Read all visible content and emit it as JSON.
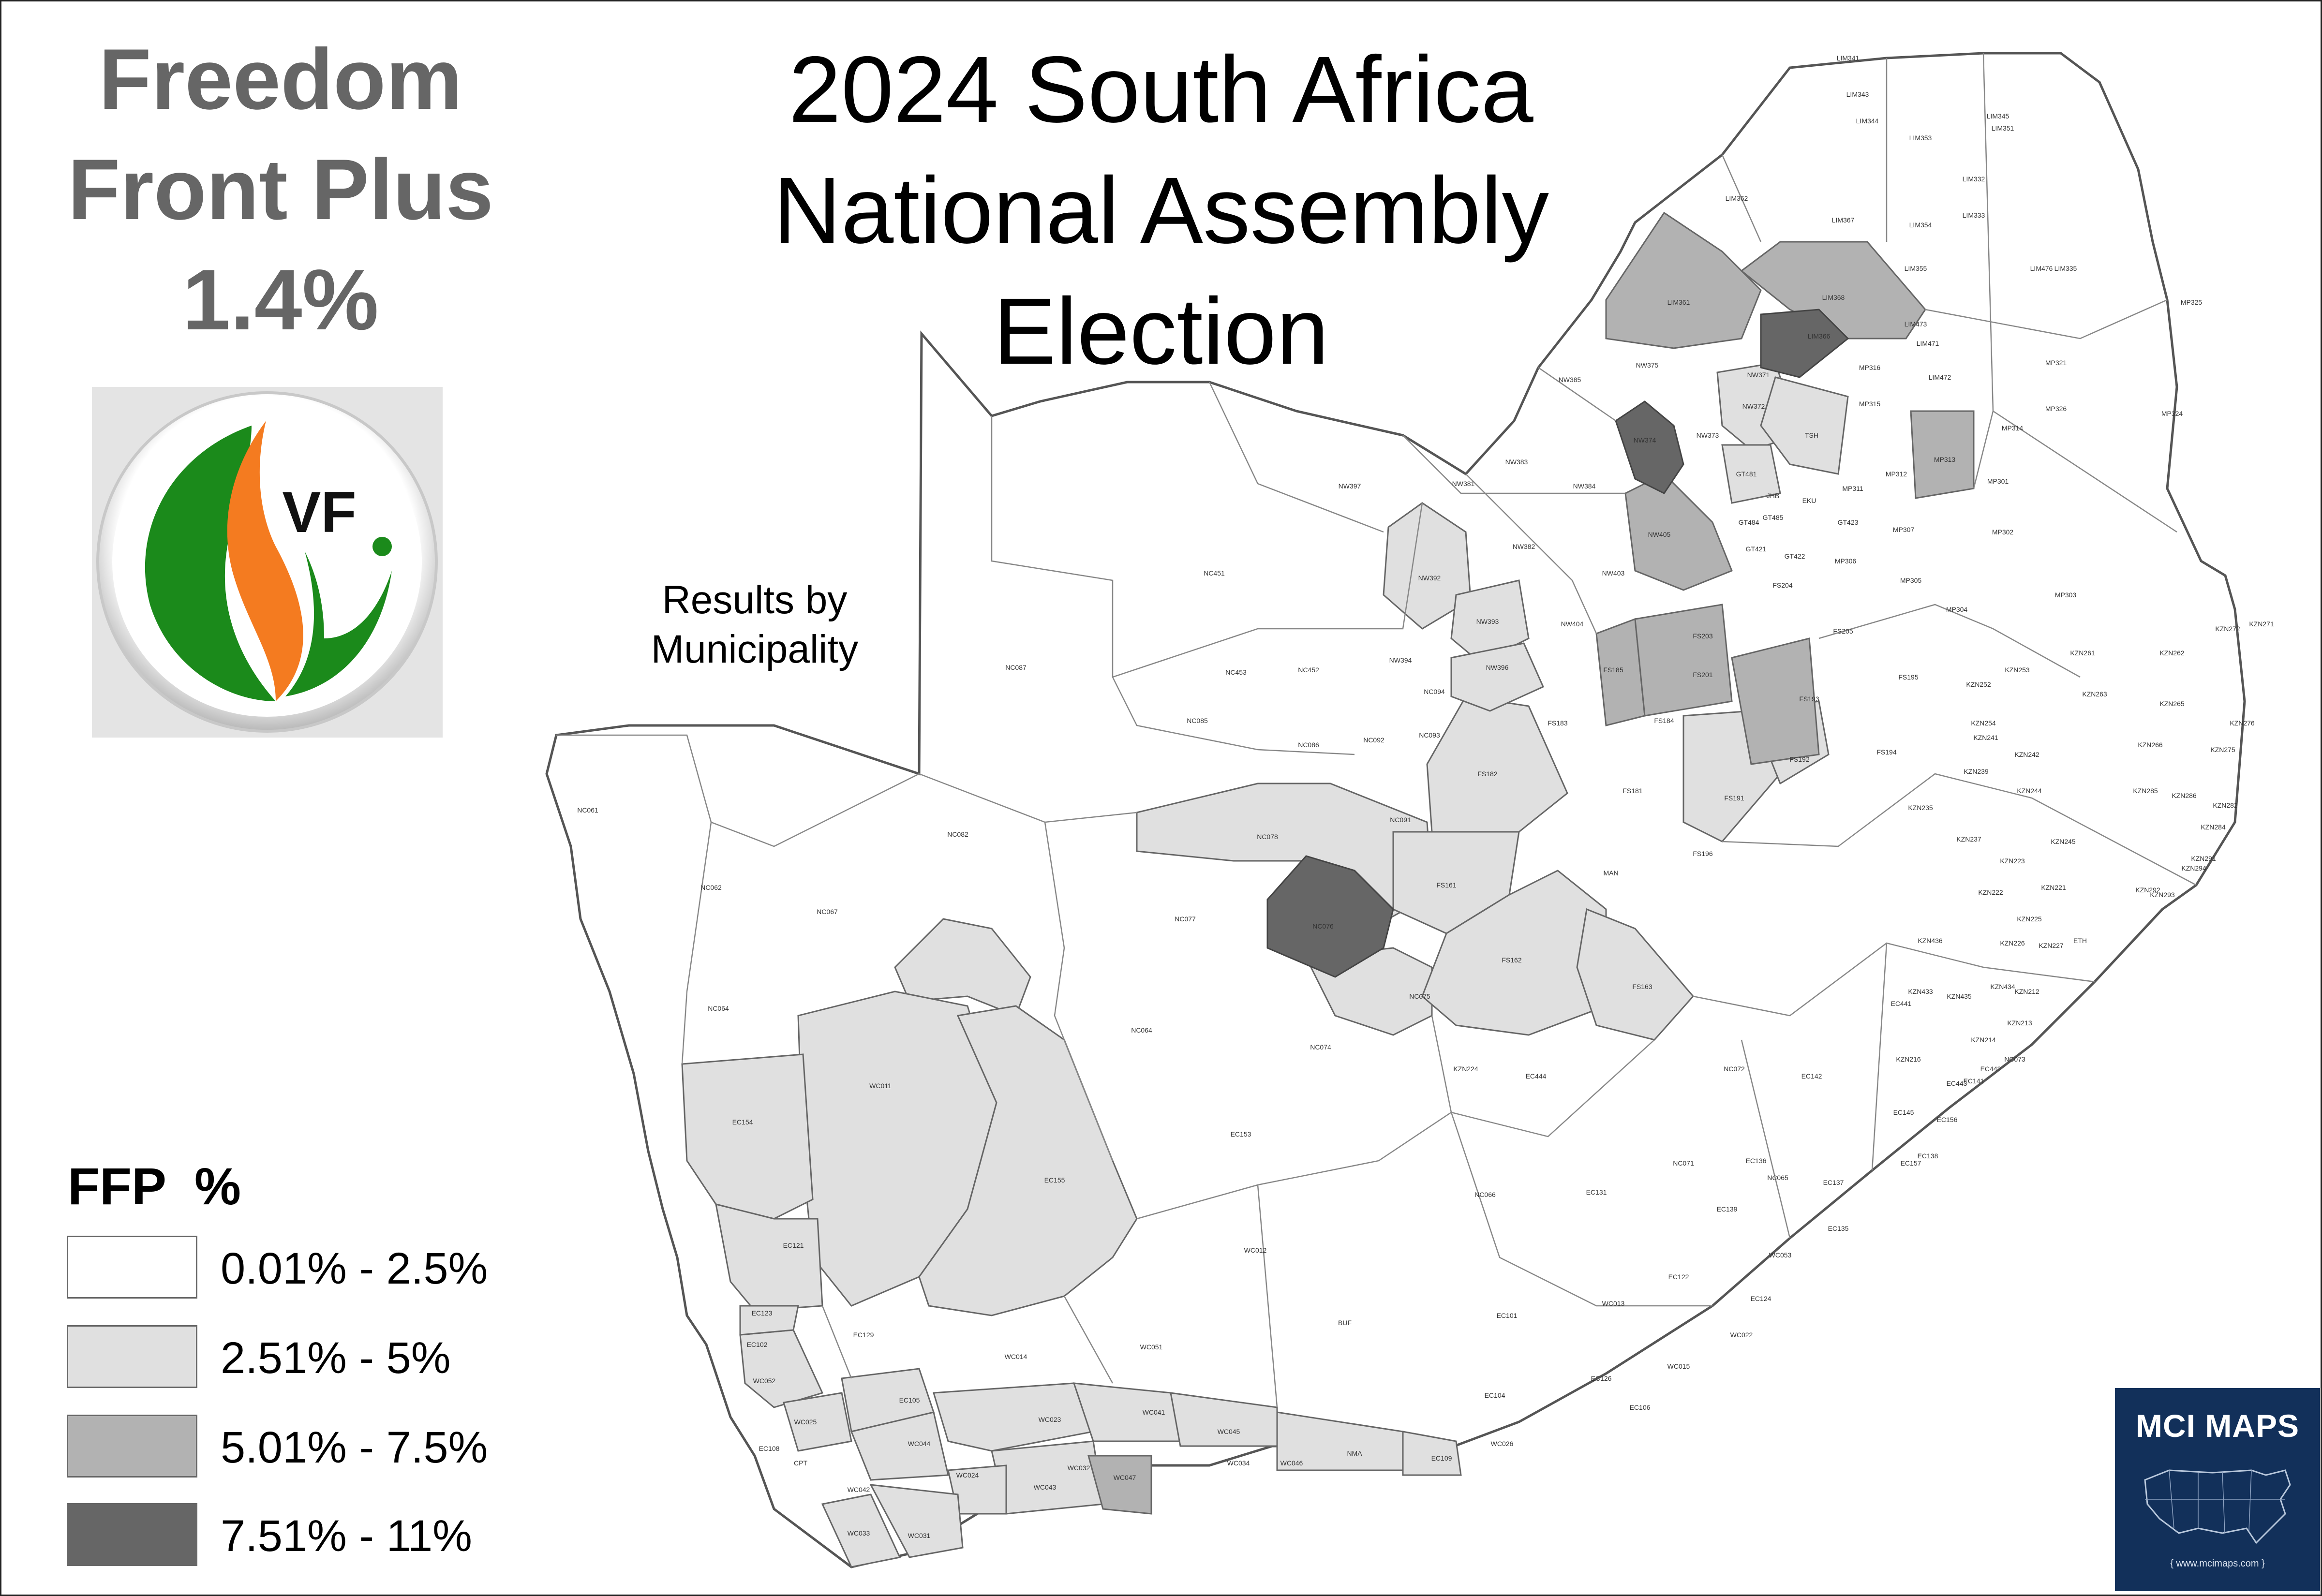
{
  "party": {
    "name_line1": "Freedom",
    "name_line2": "Front Plus",
    "national_share": "1.4%",
    "logo_letters": "VF",
    "colors": {
      "green": "#1b8a1b",
      "orange": "#f47b20",
      "gray": "#666666"
    }
  },
  "title": {
    "line1": "2024 South Africa",
    "line2": "National Assembly",
    "line3": "Election"
  },
  "subtitle": "Results by\nMunicipality",
  "legend": {
    "title": "FFP  %",
    "classes": [
      {
        "label": "0.01% - 2.5%",
        "color": "#ffffff"
      },
      {
        "label": "2.51% - 5%",
        "color": "#e0e0e0"
      },
      {
        "label": "5.01% - 7.5%",
        "color": "#b2b2b2"
      },
      {
        "label": "7.51% - 11%",
        "color": "#666666"
      }
    ]
  },
  "municipality_labels": [
    "LIM341",
    "LIM343",
    "LIM345",
    "LIM344",
    "LIM351",
    "LIM353",
    "LIM332",
    "LIM362",
    "LIM367",
    "LIM354",
    "LIM333",
    "LIM355",
    "LIM335",
    "LIM476",
    "LIM361",
    "LIM366",
    "LIM473",
    "MP325",
    "LIM368",
    "LIM471",
    "LIM472",
    "MP321",
    "NW375",
    "NW371",
    "MP316",
    "MP315",
    "MP326",
    "MP324",
    "NW385",
    "NW373",
    "NW372",
    "TSH",
    "MP314",
    "NW374",
    "GT481",
    "MP313",
    "MP312",
    "NW383",
    "NW384",
    "NW397",
    "NW381",
    "JHB",
    "EKU",
    "MP311",
    "MP301",
    "NW405",
    "GT484",
    "GT485",
    "GT423",
    "MP307",
    "MP302",
    "NW382",
    "GT421",
    "GT422",
    "MP306",
    "NW392",
    "NC451",
    "NW403",
    "FS204",
    "MP305",
    "MP304",
    "MP303",
    "NW393",
    "NW404",
    "FS203",
    "FS205",
    "KZN271",
    "KZN272",
    "NC087",
    "NC453",
    "NW394",
    "NW396",
    "FS185",
    "FS201",
    "KZN261",
    "KZN262",
    "NC452",
    "FS195",
    "KZN252",
    "KZN253",
    "NC094",
    "FS193",
    "KZN263",
    "NC085",
    "NC093",
    "FS183",
    "FS184",
    "KZN254",
    "KZN265",
    "KZN276",
    "NC086",
    "NC092",
    "KZN241",
    "KZN242",
    "KZN266",
    "KZN275",
    "FS182",
    "FS194",
    "FS192",
    "KZN239",
    "KZN244",
    "KZN286",
    "NC061",
    "FS181",
    "FS191",
    "KZN235",
    "KZN285",
    "KZN282",
    "NC091",
    "KZN237",
    "KZN245",
    "KZN284",
    "NC062",
    "NC078",
    "KZN223",
    "KZN221",
    "KZN291",
    "FS196",
    "KZN222",
    "KZN294",
    "KZN293",
    "NC082",
    "NC064",
    "MAN",
    "KZN292",
    "NC067",
    "NC077",
    "FS161",
    "KZN225",
    "NC076",
    "KZN226",
    "KZN227",
    "ETH",
    "KZN436",
    "KZN434",
    "KZN433",
    "KZN212",
    "FS162",
    "KZN435",
    "KZN213",
    "NC075",
    "FS163",
    "EC441",
    "KZN214",
    "NC064",
    "NC074",
    "NC073",
    "KZN216",
    "EC442",
    "KZN224",
    "NC072",
    "EC142",
    "EC141",
    "EC443",
    "EC444",
    "EC145",
    "EC156",
    "EC153",
    "NC071",
    "EC136",
    "EC138",
    "EC154",
    "WC011",
    "NC065",
    "EC137",
    "EC157",
    "EC155",
    "NC066",
    "EC131",
    "EC139",
    "EC135",
    "EC121",
    "WC012",
    "WC053",
    "EC122",
    "EC124",
    "EC123",
    "WC013",
    "EC129",
    "WC022",
    "BUF",
    "EC101",
    "EC102",
    "WC014",
    "WC051",
    "WC052",
    "WC015",
    "EC126",
    "EC104",
    "EC106",
    "EC105",
    "WC025",
    "WC023",
    "WC041",
    "WC045",
    "WC044",
    "WC026",
    "NMA",
    "EC109",
    "EC108",
    "CPT",
    "WC024",
    "WC034",
    "WC046",
    "WC047",
    "WC043",
    "WC042",
    "WC031",
    "WC033",
    "WC032",
    "WC039"
  ],
  "badge": {
    "brand": "MCI MAPS",
    "url": "{ www.mcimaps.com }"
  }
}
